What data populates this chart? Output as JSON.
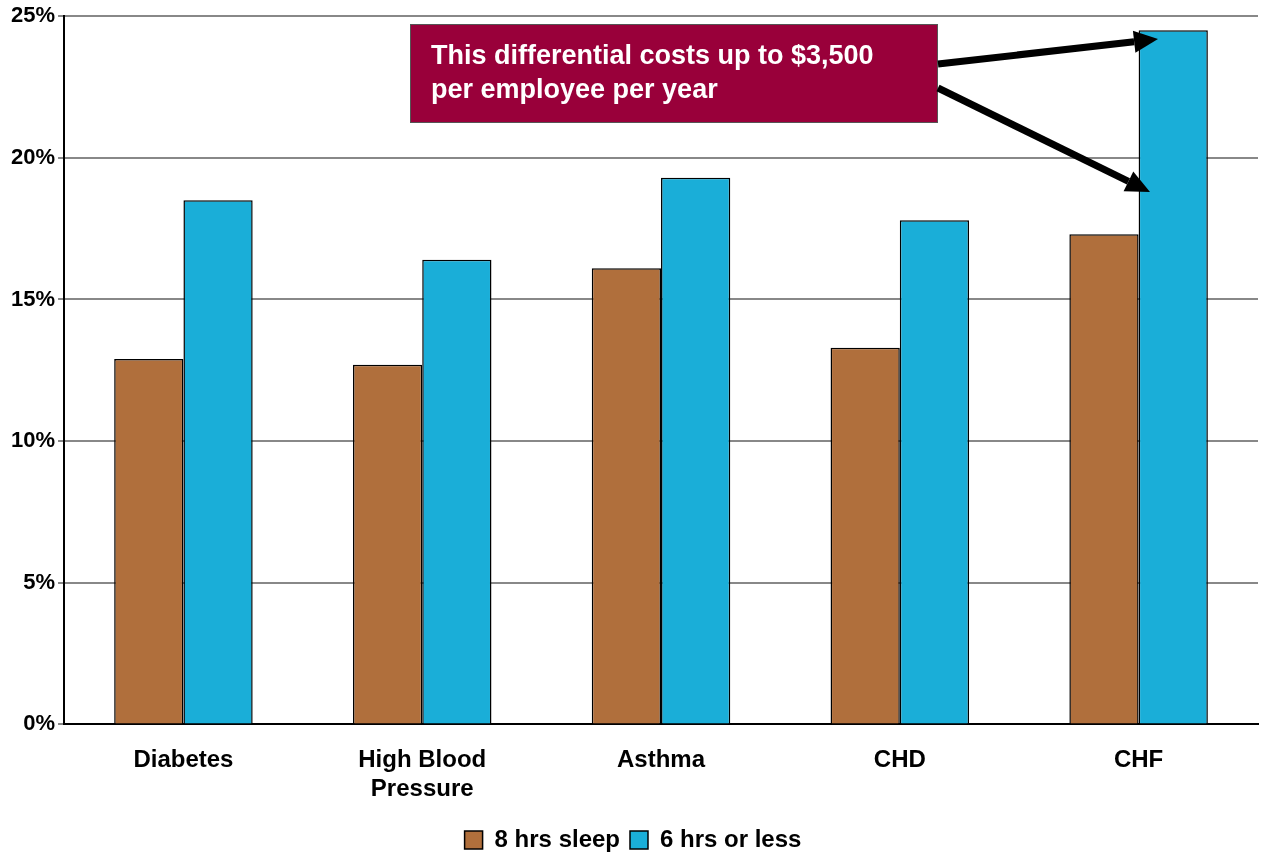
{
  "chart_data": {
    "type": "bar",
    "categories": [
      "Diabetes",
      "High Blood Pressure",
      "Asthma",
      "CHD",
      "CHF"
    ],
    "series": [
      {
        "name": "8 hrs sleep",
        "color": "#b06f3c",
        "values": [
          12.9,
          12.7,
          16.1,
          13.3,
          17.3
        ]
      },
      {
        "name": "6 hrs or less",
        "color": "#1aaed8",
        "values": [
          18.5,
          16.4,
          19.3,
          17.8,
          24.5
        ]
      }
    ],
    "ylim": [
      0,
      25
    ],
    "yticks": [
      {
        "value": 0,
        "label": "0%"
      },
      {
        "value": 5,
        "label": "5%"
      },
      {
        "value": 10,
        "label": "10%"
      },
      {
        "value": 15,
        "label": "15%"
      },
      {
        "value": 20,
        "label": "20%"
      },
      {
        "value": 25,
        "label": "25%"
      }
    ],
    "grid": "y",
    "legend": "bottom",
    "annotations": [
      "This differential costs up to $3,500 per employee per year"
    ]
  }
}
